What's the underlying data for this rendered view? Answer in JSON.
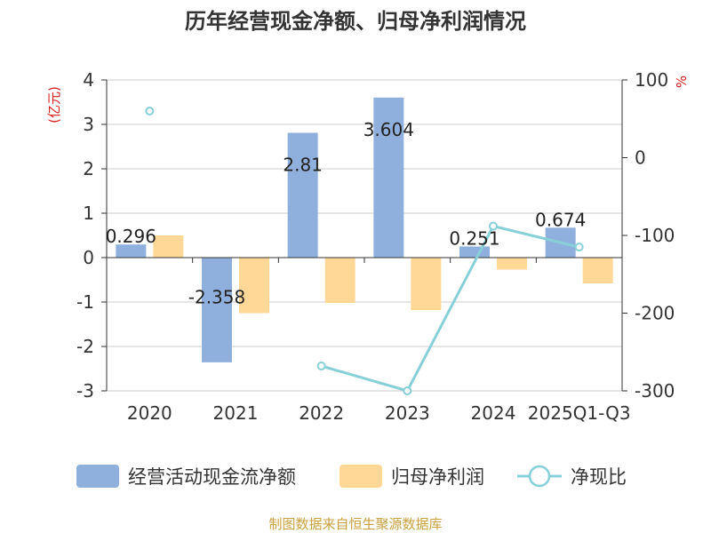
{
  "chart_data": {
    "type": "bar",
    "title": "历年经营现金净额、归母净利润情况",
    "categories": [
      "2020",
      "2021",
      "2022",
      "2023",
      "2024",
      "2025Q1-Q3"
    ],
    "left_axis_label": "(亿元)",
    "right_axis_label": "%",
    "left_ylim": [
      -3,
      4
    ],
    "left_ticks": [
      4,
      3,
      2,
      1,
      0,
      -1,
      -2,
      -3
    ],
    "right_ylim": [
      -300,
      100
    ],
    "right_ticks": [
      100,
      0,
      -100,
      -200,
      -300
    ],
    "series": [
      {
        "name": "经营活动现金流净额",
        "type": "bar",
        "axis": "left",
        "color": "#8fb0dd",
        "values": [
          0.296,
          -2.358,
          2.81,
          3.604,
          0.251,
          0.674
        ],
        "labels": [
          "0.296",
          "-2.358",
          "2.81",
          "3.604",
          "0.251",
          "0.674"
        ]
      },
      {
        "name": "归母净利润",
        "type": "bar",
        "axis": "left",
        "color": "#ffd797",
        "values": [
          0.5,
          -1.25,
          -1.02,
          -1.18,
          -0.27,
          -0.58
        ]
      },
      {
        "name": "净现比",
        "type": "line",
        "axis": "right",
        "color": "#88d0d8",
        "values": [
          60,
          null,
          -268,
          -300,
          -88,
          -115
        ]
      }
    ],
    "source": "制图数据来自恒生聚源数据库",
    "source_color": "#c8a040"
  }
}
